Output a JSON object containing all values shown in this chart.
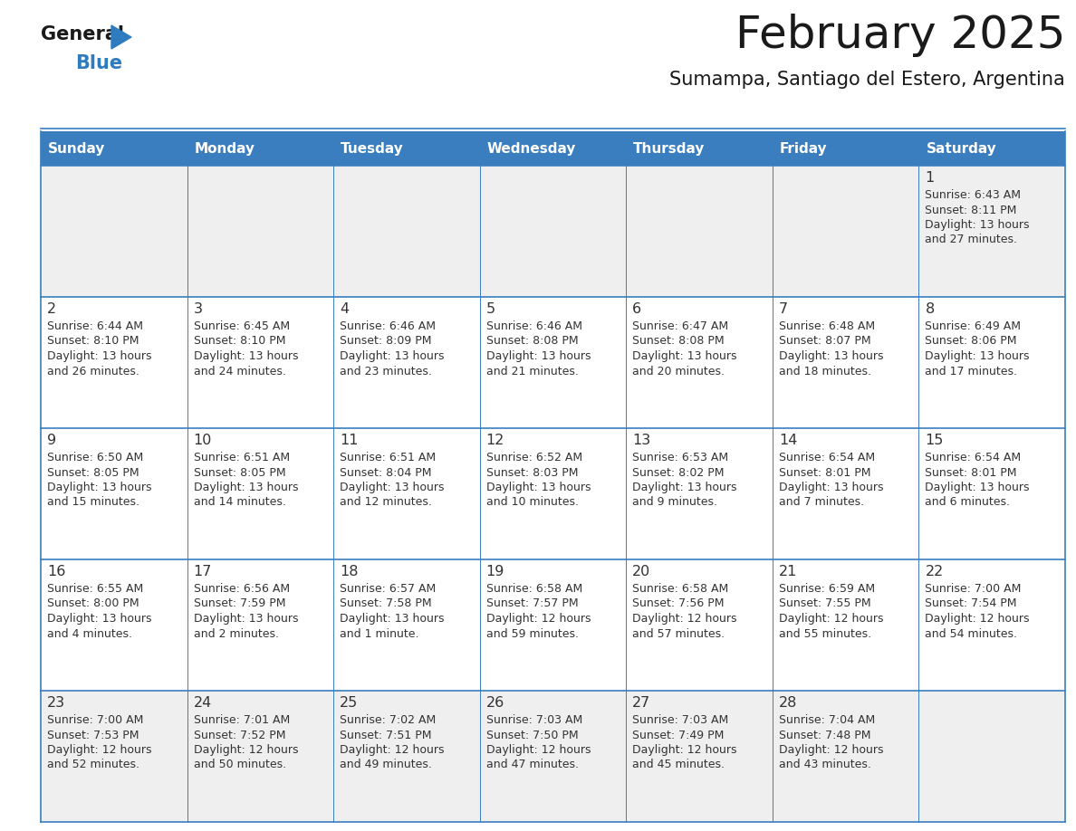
{
  "title": "February 2025",
  "subtitle": "Sumampa, Santiago del Estero, Argentina",
  "header_color": "#3A7EBF",
  "header_text_color": "#FFFFFF",
  "cell_bg_white": "#FFFFFF",
  "cell_bg_gray": "#EFEFEF",
  "border_color": "#3A7EBF",
  "text_color": "#333333",
  "day_number_color": "#333333",
  "logo_text_color": "#1A1A1A",
  "logo_blue_color": "#2E7BBF",
  "days_of_week": [
    "Sunday",
    "Monday",
    "Tuesday",
    "Wednesday",
    "Thursday",
    "Friday",
    "Saturday"
  ],
  "row_bg": [
    "gray",
    "white",
    "white",
    "white",
    "gray"
  ],
  "calendar_data": [
    [
      null,
      null,
      null,
      null,
      null,
      null,
      {
        "day": 1,
        "sunrise": "6:43 AM",
        "sunset": "8:11 PM",
        "daylight_hours": 13,
        "daylight_minutes": 27
      }
    ],
    [
      {
        "day": 2,
        "sunrise": "6:44 AM",
        "sunset": "8:10 PM",
        "daylight_hours": 13,
        "daylight_minutes": 26
      },
      {
        "day": 3,
        "sunrise": "6:45 AM",
        "sunset": "8:10 PM",
        "daylight_hours": 13,
        "daylight_minutes": 24
      },
      {
        "day": 4,
        "sunrise": "6:46 AM",
        "sunset": "8:09 PM",
        "daylight_hours": 13,
        "daylight_minutes": 23
      },
      {
        "day": 5,
        "sunrise": "6:46 AM",
        "sunset": "8:08 PM",
        "daylight_hours": 13,
        "daylight_minutes": 21
      },
      {
        "day": 6,
        "sunrise": "6:47 AM",
        "sunset": "8:08 PM",
        "daylight_hours": 13,
        "daylight_minutes": 20
      },
      {
        "day": 7,
        "sunrise": "6:48 AM",
        "sunset": "8:07 PM",
        "daylight_hours": 13,
        "daylight_minutes": 18
      },
      {
        "day": 8,
        "sunrise": "6:49 AM",
        "sunset": "8:06 PM",
        "daylight_hours": 13,
        "daylight_minutes": 17
      }
    ],
    [
      {
        "day": 9,
        "sunrise": "6:50 AM",
        "sunset": "8:05 PM",
        "daylight_hours": 13,
        "daylight_minutes": 15
      },
      {
        "day": 10,
        "sunrise": "6:51 AM",
        "sunset": "8:05 PM",
        "daylight_hours": 13,
        "daylight_minutes": 14
      },
      {
        "day": 11,
        "sunrise": "6:51 AM",
        "sunset": "8:04 PM",
        "daylight_hours": 13,
        "daylight_minutes": 12
      },
      {
        "day": 12,
        "sunrise": "6:52 AM",
        "sunset": "8:03 PM",
        "daylight_hours": 13,
        "daylight_minutes": 10
      },
      {
        "day": 13,
        "sunrise": "6:53 AM",
        "sunset": "8:02 PM",
        "daylight_hours": 13,
        "daylight_minutes": 9
      },
      {
        "day": 14,
        "sunrise": "6:54 AM",
        "sunset": "8:01 PM",
        "daylight_hours": 13,
        "daylight_minutes": 7
      },
      {
        "day": 15,
        "sunrise": "6:54 AM",
        "sunset": "8:01 PM",
        "daylight_hours": 13,
        "daylight_minutes": 6
      }
    ],
    [
      {
        "day": 16,
        "sunrise": "6:55 AM",
        "sunset": "8:00 PM",
        "daylight_hours": 13,
        "daylight_minutes": 4
      },
      {
        "day": 17,
        "sunrise": "6:56 AM",
        "sunset": "7:59 PM",
        "daylight_hours": 13,
        "daylight_minutes": 2
      },
      {
        "day": 18,
        "sunrise": "6:57 AM",
        "sunset": "7:58 PM",
        "daylight_hours": 13,
        "daylight_minutes": 1
      },
      {
        "day": 19,
        "sunrise": "6:58 AM",
        "sunset": "7:57 PM",
        "daylight_hours": 12,
        "daylight_minutes": 59
      },
      {
        "day": 20,
        "sunrise": "6:58 AM",
        "sunset": "7:56 PM",
        "daylight_hours": 12,
        "daylight_minutes": 57
      },
      {
        "day": 21,
        "sunrise": "6:59 AM",
        "sunset": "7:55 PM",
        "daylight_hours": 12,
        "daylight_minutes": 55
      },
      {
        "day": 22,
        "sunrise": "7:00 AM",
        "sunset": "7:54 PM",
        "daylight_hours": 12,
        "daylight_minutes": 54
      }
    ],
    [
      {
        "day": 23,
        "sunrise": "7:00 AM",
        "sunset": "7:53 PM",
        "daylight_hours": 12,
        "daylight_minutes": 52
      },
      {
        "day": 24,
        "sunrise": "7:01 AM",
        "sunset": "7:52 PM",
        "daylight_hours": 12,
        "daylight_minutes": 50
      },
      {
        "day": 25,
        "sunrise": "7:02 AM",
        "sunset": "7:51 PM",
        "daylight_hours": 12,
        "daylight_minutes": 49
      },
      {
        "day": 26,
        "sunrise": "7:03 AM",
        "sunset": "7:50 PM",
        "daylight_hours": 12,
        "daylight_minutes": 47
      },
      {
        "day": 27,
        "sunrise": "7:03 AM",
        "sunset": "7:49 PM",
        "daylight_hours": 12,
        "daylight_minutes": 45
      },
      {
        "day": 28,
        "sunrise": "7:04 AM",
        "sunset": "7:48 PM",
        "daylight_hours": 12,
        "daylight_minutes": 43
      },
      null
    ]
  ]
}
